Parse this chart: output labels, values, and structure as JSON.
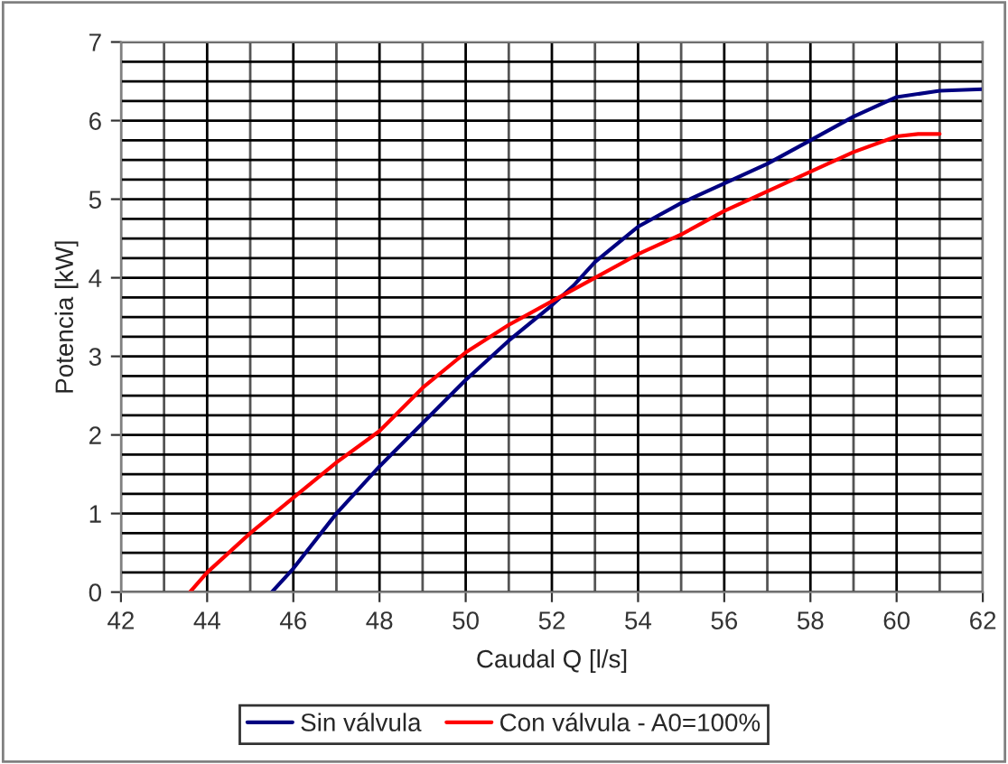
{
  "chart_data": {
    "type": "line",
    "xlabel": "Caudal Q [l/s]",
    "ylabel": "Potencia [kW]",
    "xlim": [
      42,
      62
    ],
    "xticks": [
      42,
      44,
      46,
      48,
      50,
      52,
      54,
      56,
      58,
      60,
      62
    ],
    "ylim": [
      0,
      7
    ],
    "yticks": [
      0,
      1,
      2,
      3,
      4,
      5,
      6,
      7
    ],
    "grid": true,
    "legend": "bottom",
    "marker": "none",
    "line_style": "solid",
    "series": [
      {
        "name": "Sin válvula",
        "color": "#000080",
        "x": [
          45.5,
          46,
          47,
          48,
          49,
          50,
          51,
          52,
          52.5,
          53,
          54,
          55,
          56,
          57,
          58,
          59,
          60,
          61,
          62
        ],
        "values": [
          0,
          0.3,
          1.0,
          1.6,
          2.15,
          2.7,
          3.2,
          3.65,
          3.9,
          4.2,
          4.65,
          4.95,
          5.2,
          5.45,
          5.75,
          6.05,
          6.3,
          6.38,
          6.4
        ]
      },
      {
        "name": "Con válvula - A0=100%",
        "color": "#ff0000",
        "x": [
          43.6,
          44,
          45,
          46,
          47,
          48,
          49,
          50,
          51,
          52,
          53,
          54,
          55,
          56,
          57,
          58,
          59,
          60,
          60.5,
          61
        ],
        "values": [
          0,
          0.25,
          0.75,
          1.2,
          1.65,
          2.05,
          2.6,
          3.05,
          3.4,
          3.7,
          4.0,
          4.3,
          4.55,
          4.85,
          5.1,
          5.35,
          5.6,
          5.8,
          5.83,
          5.83
        ]
      }
    ]
  }
}
